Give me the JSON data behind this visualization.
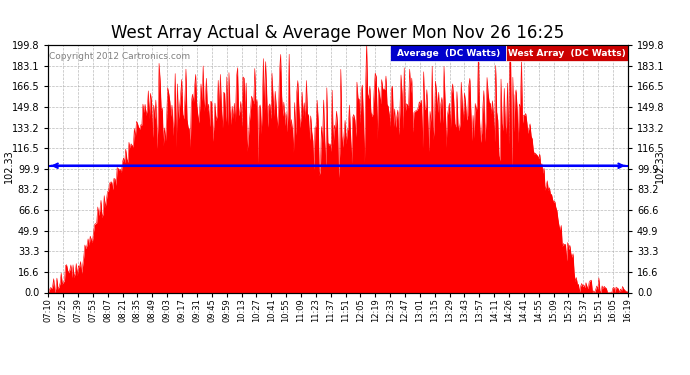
{
  "title": "West Array Actual & Average Power Mon Nov 26 16:25",
  "copyright": "Copyright 2012 Cartronics.com",
  "average_value": 102.33,
  "ylim": [
    0.0,
    199.8
  ],
  "yticks": [
    0.0,
    16.6,
    33.3,
    49.9,
    66.6,
    83.2,
    99.9,
    116.5,
    133.2,
    149.8,
    166.5,
    183.1,
    199.8
  ],
  "bar_color": "#FF0000",
  "avg_line_color": "#0000FF",
  "background_color": "#FFFFFF",
  "grid_color": "#AAAAAA",
  "legend_avg_bg": "#0000CC",
  "legend_west_bg": "#CC0000",
  "avg_label": "102.33",
  "xtick_labels": [
    "07:10",
    "07:25",
    "07:39",
    "07:53",
    "08:07",
    "08:21",
    "08:35",
    "08:49",
    "09:03",
    "09:17",
    "09:31",
    "09:45",
    "09:59",
    "10:13",
    "10:27",
    "10:41",
    "10:55",
    "11:09",
    "11:23",
    "11:37",
    "11:51",
    "12:05",
    "12:19",
    "12:33",
    "12:47",
    "13:01",
    "13:15",
    "13:29",
    "13:43",
    "13:57",
    "14:11",
    "14:26",
    "14:41",
    "14:55",
    "15:09",
    "15:23",
    "15:37",
    "15:51",
    "16:05",
    "16:19"
  ]
}
